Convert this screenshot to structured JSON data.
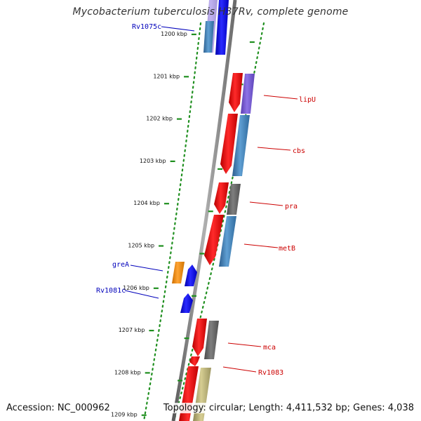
{
  "title": "Mycobacterium tuberculosis H37Rv, complete genome",
  "footer": {
    "accession": "Accession: NC_000962",
    "summary": "Topology: circular; Length: 4,411,532 bp; Genes: 4,038"
  },
  "colors": {
    "backbone": "#8a8a8a",
    "dots": "#1f8f1f",
    "label_forward": "#cc0000",
    "label_reverse": "#0000bb"
  },
  "ticks": [
    "1200 kbp",
    "1201 kbp",
    "1202 kbp",
    "1203 kbp",
    "1204 kbp",
    "1205 kbp",
    "1206 kbp",
    "1207 kbp",
    "1208 kbp",
    "1209 kbp"
  ],
  "gene_labels": {
    "Rv1075c": "Rv1075c",
    "lipU": "lipU",
    "cbs": "cbs",
    "pra": "pra",
    "metB": "metB",
    "greA": "greA",
    "Rv1081c": "Rv1081c",
    "mca": "mca",
    "Rv1083": "Rv1083"
  }
}
